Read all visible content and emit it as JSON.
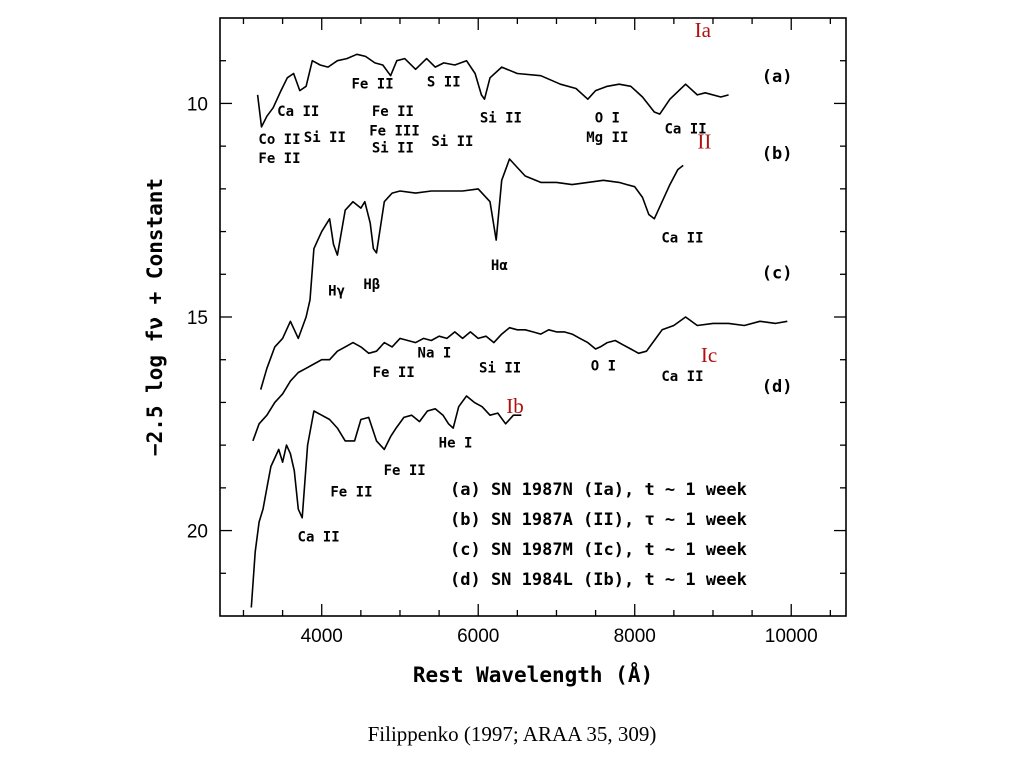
{
  "chart_data": {
    "type": "line",
    "xlabel": "Rest Wavelength (Å)",
    "ylabel": "−2.5 log fν + Constant",
    "xlim": [
      2700,
      10700
    ],
    "ylim": [
      22,
      8
    ],
    "y_inverted": true,
    "x_ticks": [
      4000,
      6000,
      8000,
      10000
    ],
    "y_ticks": [
      10,
      15,
      20
    ],
    "series": [
      {
        "name": "(a) SN 1987N (Ia), t ~ 1 week",
        "x": [
          3180,
          3230,
          3300,
          3380,
          3480,
          3560,
          3640,
          3720,
          3800,
          3880,
          3980,
          4080,
          4200,
          4320,
          4450,
          4560,
          4680,
          4780,
          4880,
          4960,
          5060,
          5200,
          5340,
          5450,
          5560,
          5700,
          5850,
          5960,
          6040,
          6080,
          6150,
          6300,
          6500,
          6800,
          7050,
          7250,
          7400,
          7500,
          7650,
          7800,
          7950,
          8100,
          8250,
          8320,
          8450,
          8650,
          8800,
          8900,
          9100,
          9200
        ],
        "y": [
          9.8,
          10.55,
          10.3,
          10.1,
          9.7,
          9.4,
          9.3,
          9.7,
          9.6,
          9.0,
          9.1,
          9.15,
          9.0,
          8.95,
          8.85,
          8.9,
          9.05,
          9.1,
          9.35,
          9.0,
          8.95,
          9.2,
          8.95,
          9.15,
          9.05,
          9.1,
          9.0,
          9.3,
          9.8,
          9.9,
          9.4,
          9.15,
          9.3,
          9.35,
          9.55,
          9.65,
          9.9,
          9.7,
          9.6,
          9.55,
          9.6,
          9.85,
          10.2,
          10.25,
          9.9,
          9.55,
          9.8,
          9.75,
          9.85,
          9.8
        ]
      },
      {
        "name": "(b) SN 1987A (II), τ ~ 1 week",
        "x": [
          3220,
          3300,
          3400,
          3500,
          3600,
          3700,
          3800,
          3850,
          3900,
          3950,
          4000,
          4100,
          4150,
          4200,
          4300,
          4400,
          4500,
          4550,
          4620,
          4660,
          4700,
          4800,
          4900,
          5000,
          5200,
          5400,
          5600,
          5800,
          6000,
          6150,
          6230,
          6300,
          6400,
          6500,
          6600,
          6800,
          7000,
          7200,
          7400,
          7600,
          7800,
          7900,
          8000,
          8100,
          8180,
          8250,
          8350,
          8450,
          8550,
          8620
        ],
        "y": [
          16.7,
          16.2,
          15.7,
          15.5,
          15.1,
          15.5,
          15.0,
          14.6,
          13.4,
          13.2,
          13.0,
          12.7,
          13.3,
          13.55,
          12.5,
          12.3,
          12.45,
          12.3,
          12.8,
          13.4,
          13.5,
          12.3,
          12.1,
          12.05,
          12.1,
          12.05,
          12.05,
          12.05,
          12.0,
          12.3,
          13.2,
          11.8,
          11.3,
          11.5,
          11.7,
          11.85,
          11.85,
          11.9,
          11.85,
          11.8,
          11.85,
          11.9,
          11.95,
          12.2,
          12.6,
          12.7,
          12.3,
          11.9,
          11.55,
          11.45
        ]
      },
      {
        "name": "(c) SN 1987M (Ic), t ~ 1 week",
        "x": [
          3120,
          3200,
          3300,
          3400,
          3500,
          3600,
          3700,
          3800,
          3900,
          4000,
          4100,
          4200,
          4300,
          4400,
          4500,
          4600,
          4700,
          4800,
          4900,
          5000,
          5100,
          5200,
          5300,
          5400,
          5500,
          5600,
          5700,
          5800,
          5900,
          6000,
          6100,
          6200,
          6300,
          6400,
          6500,
          6600,
          6700,
          6800,
          6900,
          7000,
          7100,
          7200,
          7300,
          7400,
          7500,
          7560,
          7650,
          7750,
          7850,
          7950,
          8050,
          8150,
          8250,
          8350,
          8500,
          8650,
          8800,
          9000,
          9200,
          9400,
          9600,
          9800,
          9950
        ],
        "y": [
          17.9,
          17.5,
          17.3,
          17.0,
          16.8,
          16.5,
          16.3,
          16.2,
          16.1,
          16.0,
          16.0,
          15.8,
          15.7,
          15.6,
          15.7,
          15.85,
          15.8,
          15.6,
          15.7,
          15.5,
          15.55,
          15.6,
          15.5,
          15.55,
          15.45,
          15.5,
          15.35,
          15.5,
          15.35,
          15.5,
          15.45,
          15.6,
          15.4,
          15.25,
          15.3,
          15.3,
          15.35,
          15.4,
          15.3,
          15.35,
          15.35,
          15.4,
          15.5,
          15.6,
          15.75,
          15.7,
          15.6,
          15.55,
          15.65,
          15.75,
          15.85,
          15.8,
          15.55,
          15.3,
          15.2,
          15.0,
          15.2,
          15.15,
          15.15,
          15.2,
          15.1,
          15.15,
          15.1
        ]
      },
      {
        "name": "(d) SN 1984L (Ib), t ~ 1 week",
        "x": [
          3100,
          3150,
          3200,
          3250,
          3300,
          3350,
          3400,
          3450,
          3500,
          3550,
          3600,
          3650,
          3700,
          3750,
          3820,
          3900,
          4000,
          4100,
          4200,
          4300,
          4420,
          4500,
          4600,
          4700,
          4800,
          4880,
          4950,
          5050,
          5150,
          5250,
          5350,
          5450,
          5550,
          5620,
          5680,
          5750,
          5850,
          5950,
          6050,
          6150,
          6250,
          6350,
          6450,
          6550
        ],
        "y": [
          21.8,
          20.5,
          19.8,
          19.5,
          19.0,
          18.5,
          18.3,
          18.1,
          18.4,
          18.0,
          18.2,
          18.6,
          19.5,
          19.7,
          18.0,
          17.2,
          17.3,
          17.4,
          17.6,
          17.9,
          17.9,
          17.4,
          17.35,
          17.9,
          18.1,
          17.8,
          17.6,
          17.35,
          17.3,
          17.45,
          17.2,
          17.15,
          17.3,
          17.5,
          17.6,
          17.1,
          16.85,
          17.0,
          17.1,
          17.3,
          17.25,
          17.5,
          17.3,
          17.3
        ]
      }
    ],
    "line_labels": [
      {
        "text": "Co II",
        "x": 3460,
        "y": 10.95
      },
      {
        "text": "Fe II",
        "x": 3460,
        "y": 11.4
      },
      {
        "text": "Ca II",
        "x": 3700,
        "y": 10.3
      },
      {
        "text": "Si II",
        "x": 4040,
        "y": 10.9
      },
      {
        "text": "Fe II",
        "x": 4650,
        "y": 9.65
      },
      {
        "text": "Fe II",
        "x": 4910,
        "y": 10.3
      },
      {
        "text": "Fe III",
        "x": 4930,
        "y": 10.75
      },
      {
        "text": "Si II",
        "x": 4910,
        "y": 11.15
      },
      {
        "text": "S II",
        "x": 5560,
        "y": 9.6
      },
      {
        "text": "Si II",
        "x": 5670,
        "y": 11.0
      },
      {
        "text": "Si II",
        "x": 6290,
        "y": 10.45
      },
      {
        "text": "O I",
        "x": 7650,
        "y": 10.45
      },
      {
        "text": "Mg II",
        "x": 7650,
        "y": 10.9
      },
      {
        "text": "Ca II",
        "x": 8650,
        "y": 10.7
      },
      {
        "text": "Hγ",
        "x": 4190,
        "y": 14.5
      },
      {
        "text": "Hβ",
        "x": 4640,
        "y": 14.35
      },
      {
        "text": "Hα",
        "x": 6270,
        "y": 13.9
      },
      {
        "text": "Ca II",
        "x": 8610,
        "y": 13.25
      },
      {
        "text": "Fe II",
        "x": 4920,
        "y": 16.4
      },
      {
        "text": "Na I",
        "x": 5440,
        "y": 15.95
      },
      {
        "text": "Si II",
        "x": 6280,
        "y": 16.3
      },
      {
        "text": "O I",
        "x": 7600,
        "y": 16.25
      },
      {
        "text": "Ca II",
        "x": 8610,
        "y": 16.5
      },
      {
        "text": "He I",
        "x": 5710,
        "y": 18.05
      },
      {
        "text": "Fe II",
        "x": 5060,
        "y": 18.7
      },
      {
        "text": "Fe II",
        "x": 4380,
        "y": 19.2
      },
      {
        "text": "Ca II",
        "x": 3960,
        "y": 20.25
      }
    ],
    "panel_tags": [
      {
        "text": "(a)",
        "x": 9820,
        "y": 9.5
      },
      {
        "text": "(b)",
        "x": 9820,
        "y": 11.3
      },
      {
        "text": "(c)",
        "x": 9820,
        "y": 14.1
      },
      {
        "text": "(d)",
        "x": 9820,
        "y": 16.75
      }
    ],
    "type_tags": [
      {
        "text": "Ia",
        "x": 8870,
        "y": 8.45
      },
      {
        "text": "II",
        "x": 8890,
        "y": 11.05
      },
      {
        "text": "Ic",
        "x": 8950,
        "y": 16.05
      },
      {
        "text": "Ib",
        "x": 6470,
        "y": 17.25
      }
    ],
    "legend": [
      "(a) SN 1987N (Ia), t ~ 1 week",
      "(b) SN 1987A (II), τ ~ 1 week",
      "(c) SN 1987M (Ic), t ~ 1 week",
      "(d) SN 1984L (Ib), t ~ 1 week"
    ],
    "grid": false
  },
  "caption": "Filippenko (1997; ARAA 35, 309)"
}
